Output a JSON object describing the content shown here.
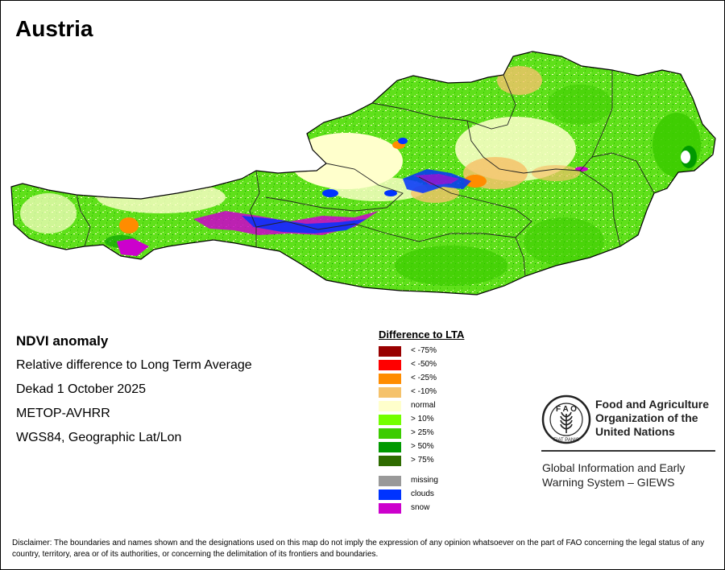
{
  "map": {
    "title": "Austria"
  },
  "info": {
    "product": "NDVI anomaly",
    "description": "Relative difference to Long Term Average",
    "period": "Dekad 1 October 2025",
    "sensor": "METOP-AVHRR",
    "projection": "WGS84, Geographic Lat/Lon"
  },
  "legend": {
    "title": "Difference to LTA",
    "classes": [
      {
        "label": "< -75%",
        "color": "#990000"
      },
      {
        "label": "< -50%",
        "color": "#ff0000"
      },
      {
        "label": "< -25%",
        "color": "#ff8c00"
      },
      {
        "label": "< -10%",
        "color": "#f5c26b"
      },
      {
        "label": "normal",
        "color": "#ffffcc"
      },
      {
        "label": "> 10%",
        "color": "#73ff00"
      },
      {
        "label": "> 25%",
        "color": "#3ccc00"
      },
      {
        "label": "> 50%",
        "color": "#009900"
      },
      {
        "label": "> 75%",
        "color": "#2e6b00"
      }
    ],
    "extra": [
      {
        "label": "missing",
        "color": "#999999"
      },
      {
        "label": "clouds",
        "color": "#0033ff"
      },
      {
        "label": "snow",
        "color": "#cc00cc"
      }
    ]
  },
  "logo": {
    "name_lines": [
      "Food and Agriculture",
      "Organization of the",
      "United Nations"
    ],
    "logo_text": "FAO FIAT PANIS",
    "system_lines": [
      "Global Information and Early",
      "Warning System – GIEWS"
    ]
  },
  "disclaimer": "Disclaimer: The boundaries and names shown and the designations used on this map do not imply the expression of any opinion whatsoever on the part of FAO concerning the legal status of any country, territory, area or of its authorities, or concerning the delimitation of its frontiers and boundaries."
}
